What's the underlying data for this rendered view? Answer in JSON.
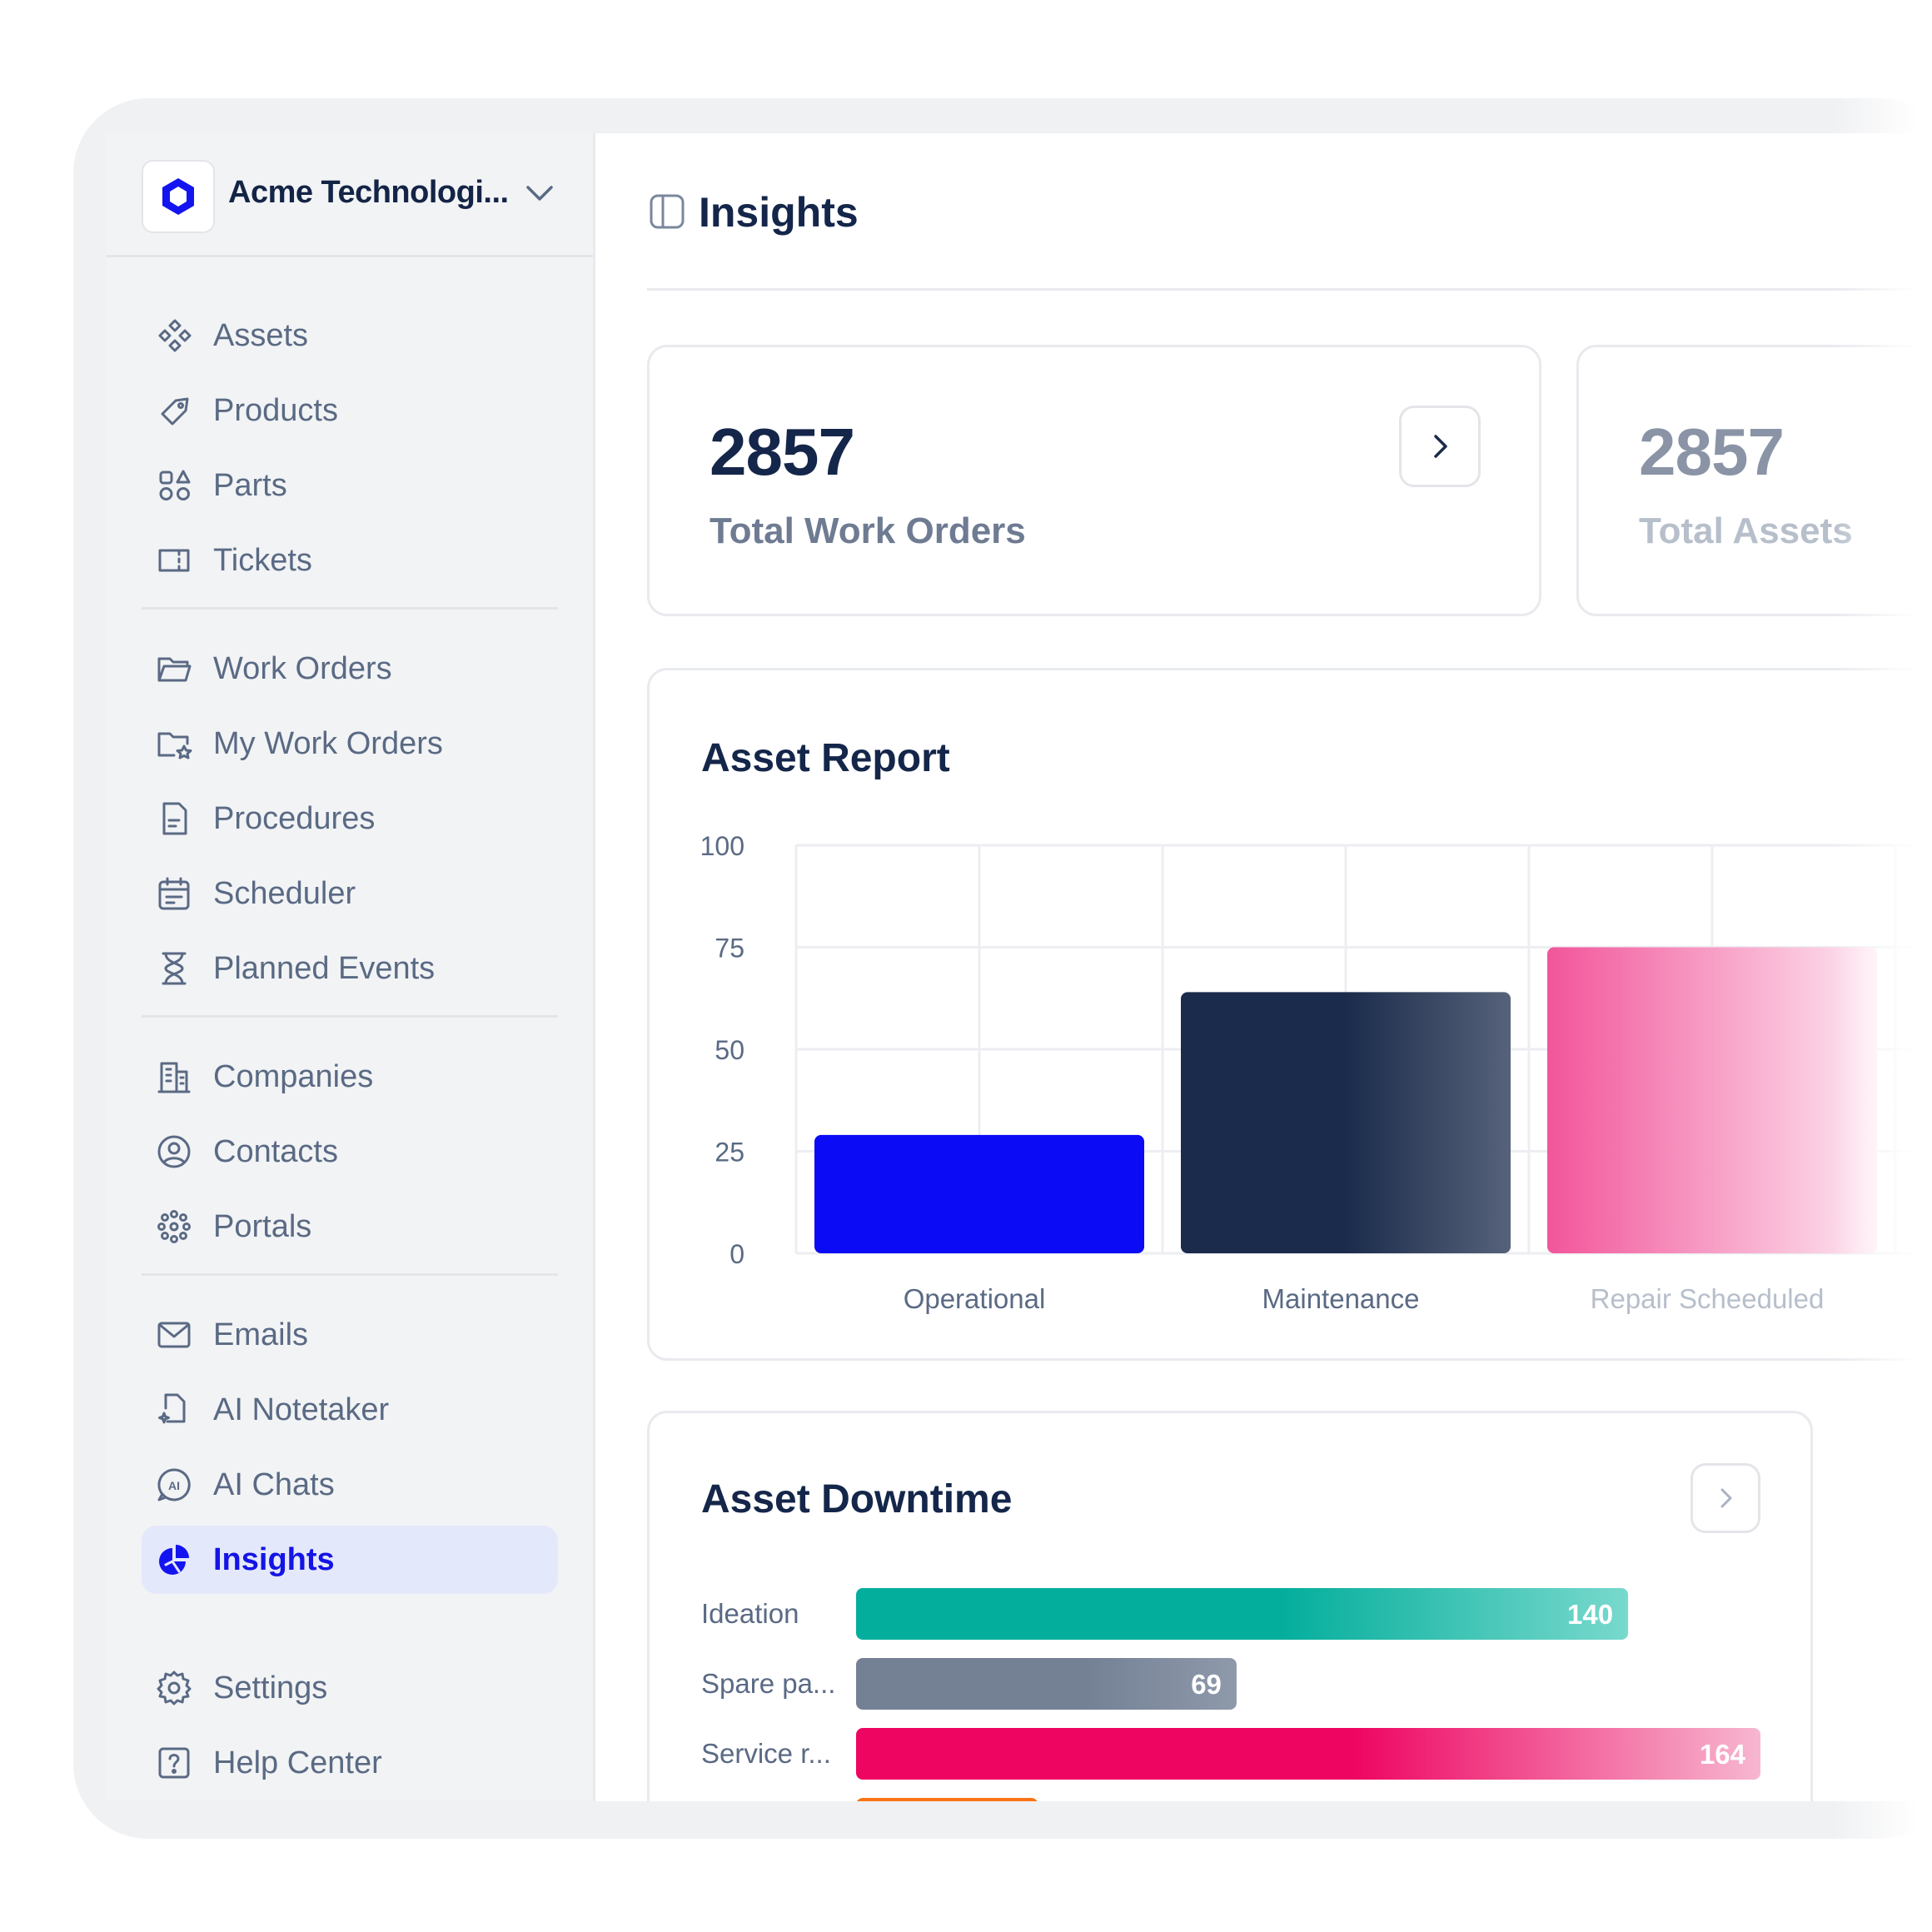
{
  "org": {
    "name": "Acme Technologi..."
  },
  "sidebar": {
    "groups": [
      [
        {
          "label": "Assets",
          "icon": "assets-icon"
        },
        {
          "label": "Products",
          "icon": "tag-icon"
        },
        {
          "label": "Parts",
          "icon": "parts-icon"
        },
        {
          "label": "Tickets",
          "icon": "ticket-icon"
        }
      ],
      [
        {
          "label": "Work Orders",
          "icon": "folder-icon"
        },
        {
          "label": "My Work Orders",
          "icon": "folder-star-icon"
        },
        {
          "label": "Procedures",
          "icon": "document-icon"
        },
        {
          "label": "Scheduler",
          "icon": "calendar-icon"
        },
        {
          "label": "Planned Events",
          "icon": "hourglass-icon"
        }
      ],
      [
        {
          "label": "Companies",
          "icon": "building-icon"
        },
        {
          "label": "Contacts",
          "icon": "user-circle-icon"
        },
        {
          "label": "Portals",
          "icon": "portals-icon"
        }
      ],
      [
        {
          "label": "Emails",
          "icon": "mail-icon"
        },
        {
          "label": "AI Notetaker",
          "icon": "ai-notetaker-icon"
        },
        {
          "label": "AI Chats",
          "icon": "ai-chat-icon"
        },
        {
          "label": "Insights",
          "icon": "pie-chart-icon",
          "active": true
        }
      ]
    ],
    "footer": [
      {
        "label": "Settings",
        "icon": "gear-icon"
      },
      {
        "label": "Help Center",
        "icon": "help-icon"
      }
    ]
  },
  "page": {
    "title": "Insights"
  },
  "stats": [
    {
      "value": "2857",
      "label": "Total Work Orders"
    },
    {
      "value": "2857",
      "label": "Total Assets"
    }
  ],
  "asset_report": {
    "title": "Asset Report"
  },
  "asset_downtime": {
    "title": "Asset Downtime"
  },
  "colors": {
    "accent": "#1414f0",
    "navy": "#1b2b4b",
    "pink": "#f2559a",
    "teal": "#04ae9c",
    "slate": "#748195",
    "magenta": "#ee0562",
    "orange": "#f97316"
  },
  "chart_data": [
    {
      "type": "bar",
      "title": "Asset Report",
      "categories": [
        "Operational",
        "Maintenance",
        "Repair Scheeduled"
      ],
      "values": [
        29,
        64,
        75
      ],
      "yticks": [
        0,
        25,
        50,
        75,
        100
      ],
      "ylim": [
        0,
        100
      ],
      "grid": true
    },
    {
      "type": "bar",
      "orientation": "horizontal",
      "title": "Asset Downtime",
      "categories": [
        "Ideation",
        "Spare pa...",
        "Service r...",
        ""
      ],
      "values": [
        140,
        69,
        164,
        33
      ],
      "data_labels": [
        "140",
        "69",
        "164",
        ""
      ]
    }
  ]
}
